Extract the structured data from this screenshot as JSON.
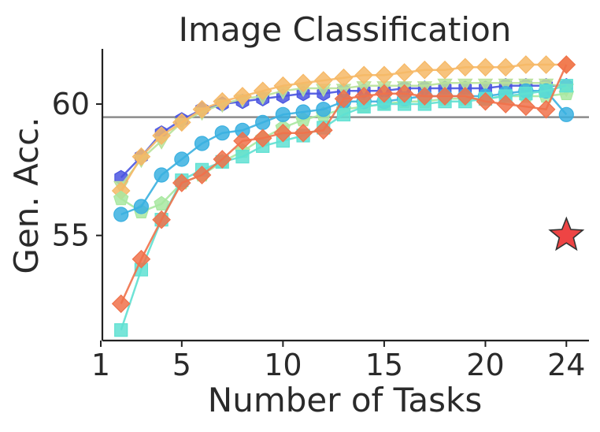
{
  "chart_data": {
    "type": "line",
    "title": "Image Classification",
    "xlabel": "Number of Tasks",
    "ylabel": "Gen. Acc.",
    "xlim": [
      1,
      25
    ],
    "ylim": [
      51,
      62.1
    ],
    "xticks": [
      1,
      5,
      10,
      15,
      20,
      24
    ],
    "yticks": [
      55,
      60
    ],
    "grid": false,
    "legend": "none",
    "reference_line": {
      "y": 59.5,
      "color": "#8c8c8c"
    },
    "target_point": {
      "x": 24,
      "y": 55.0,
      "marker": "star",
      "color": "#ee4444"
    },
    "x": [
      2,
      3,
      4,
      5,
      6,
      7,
      8,
      9,
      10,
      11,
      12,
      13,
      14,
      15,
      16,
      17,
      18,
      19,
      20,
      21,
      22,
      23,
      24
    ],
    "series": [
      {
        "color": "#4a55e0",
        "marker": "hexagon",
        "values": [
          57.2,
          58.0,
          58.9,
          59.4,
          59.8,
          60.0,
          60.1,
          60.2,
          60.3,
          60.4,
          60.4,
          60.5,
          60.5,
          60.5,
          60.6,
          60.6,
          60.6,
          60.6,
          60.6,
          60.7,
          60.7,
          60.7,
          60.7
        ]
      },
      {
        "color": "#b9e29a",
        "marker": "triangle-down",
        "values": [
          56.9,
          57.9,
          58.6,
          59.3,
          59.7,
          60.0,
          60.2,
          60.3,
          60.5,
          60.6,
          60.6,
          60.6,
          60.7,
          60.7,
          60.7,
          60.7,
          60.8,
          60.8,
          60.8,
          60.8,
          60.8,
          60.8,
          60.6
        ]
      },
      {
        "color": "#f6b866",
        "marker": "diamond",
        "values": [
          56.7,
          58.0,
          58.8,
          59.3,
          59.8,
          60.1,
          60.3,
          60.5,
          60.7,
          60.8,
          60.9,
          61.0,
          61.1,
          61.1,
          61.2,
          61.3,
          61.3,
          61.4,
          61.4,
          61.4,
          61.5,
          61.5,
          61.5
        ]
      },
      {
        "color": "#a8e8a0",
        "marker": "pentagon",
        "values": [
          56.4,
          55.9,
          56.2,
          57.0,
          57.3,
          57.8,
          58.2,
          58.7,
          59.1,
          59.4,
          59.6,
          59.8,
          59.9,
          60.0,
          60.1,
          60.1,
          60.2,
          60.2,
          60.2,
          60.3,
          60.3,
          60.3,
          60.4
        ]
      },
      {
        "color": "#3ab0e0",
        "marker": "circle",
        "values": [
          55.8,
          56.1,
          57.3,
          57.9,
          58.5,
          58.9,
          59.0,
          59.3,
          59.6,
          59.7,
          59.8,
          60.1,
          60.1,
          60.1,
          60.2,
          60.3,
          60.3,
          60.3,
          60.3,
          60.4,
          60.5,
          60.5,
          59.6
        ]
      },
      {
        "color": "#5fe0d2",
        "marker": "square",
        "values": [
          51.4,
          53.7,
          55.6,
          57.1,
          57.5,
          57.8,
          58.0,
          58.4,
          58.6,
          58.8,
          59.1,
          59.6,
          59.9,
          60.0,
          60.0,
          60.0,
          60.1,
          60.1,
          60.2,
          60.3,
          60.4,
          60.5,
          60.7
        ]
      },
      {
        "color": "#f0714a",
        "marker": "diamond",
        "values": [
          52.4,
          54.1,
          55.6,
          57.0,
          57.3,
          57.9,
          58.6,
          58.7,
          58.9,
          58.9,
          59.0,
          60.2,
          60.3,
          60.4,
          60.4,
          60.3,
          60.3,
          60.3,
          60.1,
          60.0,
          59.9,
          59.8,
          61.5
        ]
      }
    ]
  }
}
